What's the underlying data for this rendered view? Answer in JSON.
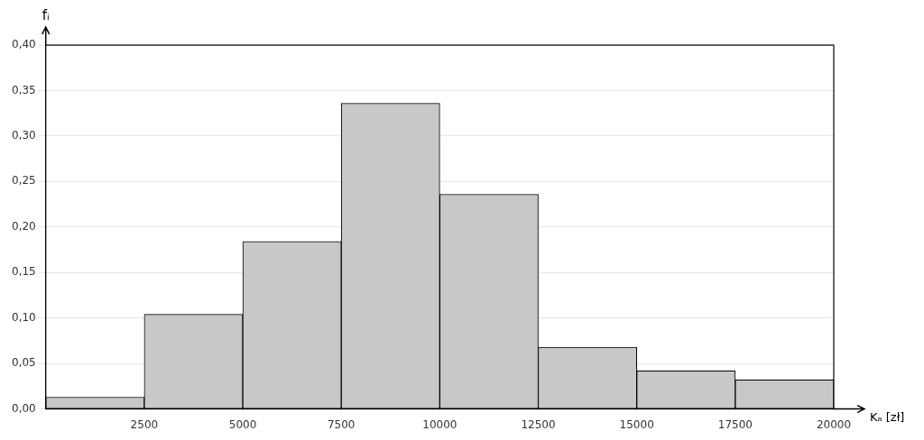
{
  "chart_data": {
    "type": "histogram",
    "xlabel": "Kₐ [zł]",
    "ylabel": "fᵢ",
    "bins": [
      0,
      2500,
      5000,
      7500,
      10000,
      12500,
      15000,
      17500,
      20000
    ],
    "values": [
      0.013,
      0.104,
      0.184,
      0.336,
      0.236,
      0.068,
      0.042,
      0.032
    ],
    "color": "#c8c8c8",
    "xlim": [
      0,
      20000
    ],
    "ylim": [
      0,
      0.4
    ],
    "xticks": [
      2500,
      5000,
      7500,
      10000,
      12500,
      15000,
      17500,
      20000
    ],
    "yticks": [
      {
        "value": 0.0,
        "label": "0,00"
      },
      {
        "value": 0.05,
        "label": "0,05"
      },
      {
        "value": 0.1,
        "label": "0,10"
      },
      {
        "value": 0.15,
        "label": "0,15"
      },
      {
        "value": 0.2,
        "label": "0,20"
      },
      {
        "value": 0.25,
        "label": "0,25"
      },
      {
        "value": 0.3,
        "label": "0,30"
      },
      {
        "value": 0.35,
        "label": "0,35"
      },
      {
        "value": 0.4,
        "label": "0,40"
      }
    ],
    "grid": "y"
  }
}
